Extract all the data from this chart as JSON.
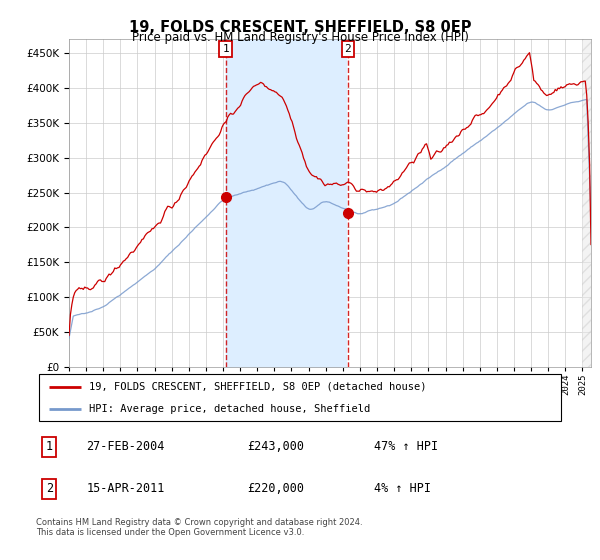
{
  "title": "19, FOLDS CRESCENT, SHEFFIELD, S8 0EP",
  "subtitle": "Price paid vs. HM Land Registry's House Price Index (HPI)",
  "legend_line1": "19, FOLDS CRESCENT, SHEFFIELD, S8 0EP (detached house)",
  "legend_line2": "HPI: Average price, detached house, Sheffield",
  "sale1_label": "1",
  "sale1_date": "27-FEB-2004",
  "sale1_price": "£243,000",
  "sale1_hpi": "47% ↑ HPI",
  "sale1_year": 2004.15,
  "sale1_value": 243000,
  "sale2_label": "2",
  "sale2_date": "15-APR-2011",
  "sale2_price": "£220,000",
  "sale2_hpi": "4% ↑ HPI",
  "sale2_year": 2011.29,
  "sale2_value": 220000,
  "background_color": "#ffffff",
  "plot_bg_color": "#ffffff",
  "grid_color": "#cccccc",
  "red_line_color": "#cc0000",
  "blue_line_color": "#7799cc",
  "shade_color": "#ddeeff",
  "footnote": "Contains HM Land Registry data © Crown copyright and database right 2024.\nThis data is licensed under the Open Government Licence v3.0.",
  "ylim": [
    0,
    470000
  ],
  "xlim_start": 1995.0,
  "xlim_end": 2025.5,
  "hpi_seed": 42
}
